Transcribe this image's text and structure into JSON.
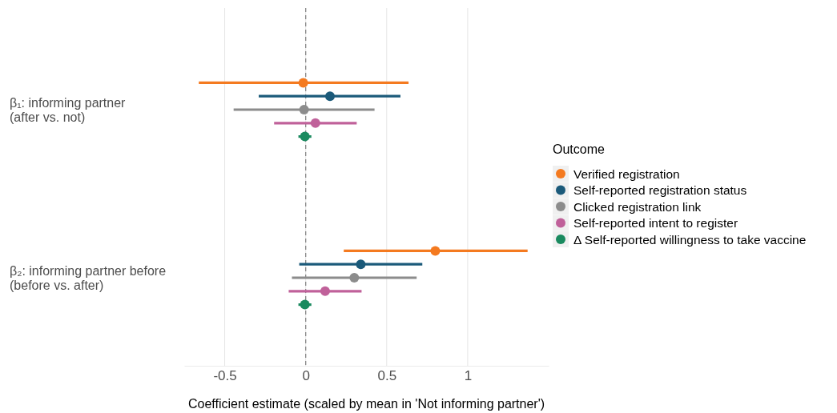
{
  "chart_data": {
    "type": "scatter",
    "orientation": "horizontal",
    "xlabel": "Coefficient estimate (scaled by mean in 'Not informing partner')",
    "legend_title": "Outcome",
    "legend": "right",
    "grid": "x",
    "marker": "circle",
    "categories": [
      "β₁: informing partner\n(after vs. not)",
      "β₂: informing partner before\n(before vs. after)"
    ],
    "xlim": [
      -0.75,
      1.5
    ],
    "xticks": [
      -0.5,
      0,
      0.5,
      1.0
    ],
    "ref_lines": [
      {
        "axis": "x",
        "value": 0,
        "color": "#888888",
        "line_style": "dashed"
      }
    ],
    "series": [
      {
        "name": "Verified registration",
        "color": "#f47a20",
        "values": [
          -0.015,
          0.8
        ],
        "errors": [
          [
            -0.66,
            0.635
          ],
          [
            0.235,
            1.37
          ]
        ]
      },
      {
        "name": "Self-reported registration status",
        "color": "#1b5a7a",
        "values": [
          0.15,
          0.34
        ],
        "errors": [
          [
            -0.29,
            0.585
          ],
          [
            -0.04,
            0.72
          ]
        ]
      },
      {
        "name": "Clicked registration link",
        "color": "#8c8c8c",
        "values": [
          -0.01,
          0.3
        ],
        "errors": [
          [
            -0.445,
            0.425
          ],
          [
            -0.085,
            0.685
          ]
        ]
      },
      {
        "name": "Self-reported intent to register",
        "color": "#c0619a",
        "values": [
          0.06,
          0.12
        ],
        "errors": [
          [
            -0.195,
            0.315
          ],
          [
            -0.105,
            0.345
          ]
        ]
      },
      {
        "name": "Δ Self-reported willingness to take vaccine",
        "color": "#1a8a5f",
        "values": [
          -0.005,
          -0.005
        ],
        "errors": [
          [
            -0.045,
            0.035
          ],
          [
            -0.045,
            0.035
          ]
        ]
      }
    ]
  }
}
